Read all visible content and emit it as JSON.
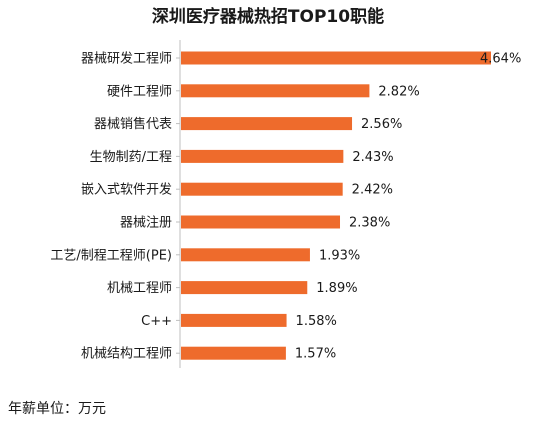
{
  "chart_data": {
    "type": "bar",
    "orientation": "horizontal",
    "title": "深圳医疗器械热招TOP10职能",
    "categories": [
      "器械研发工程师",
      "硬件工程师",
      "器械销售代表",
      "生物制药/工程",
      "嵌入式软件开发",
      "器械注册",
      "工艺/制程工程师(PE)",
      "机械工程师",
      "C++",
      "机械结构工程师"
    ],
    "values": [
      4.64,
      2.82,
      2.56,
      2.43,
      2.42,
      2.38,
      1.93,
      1.89,
      1.58,
      1.57
    ],
    "data_labels": [
      "4.64%",
      "2.82%",
      "2.56%",
      "2.43%",
      "2.42%",
      "2.38%",
      "1.93%",
      "1.89%",
      "1.58%",
      "1.57%"
    ],
    "bar_color": "#EE6B2C",
    "xlim": [
      0,
      4.64
    ],
    "grid": false,
    "legend": "none"
  },
  "footnote": "年薪单位：万元"
}
